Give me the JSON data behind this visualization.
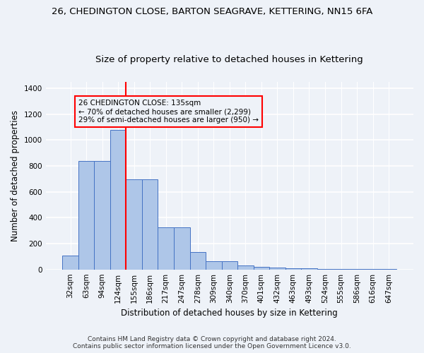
{
  "title": "26, CHEDINGTON CLOSE, BARTON SEAGRAVE, KETTERING, NN15 6FA",
  "subtitle": "Size of property relative to detached houses in Kettering",
  "xlabel": "Distribution of detached houses by size in Kettering",
  "ylabel": "Number of detached properties",
  "categories": [
    "32sqm",
    "63sqm",
    "94sqm",
    "124sqm",
    "155sqm",
    "186sqm",
    "217sqm",
    "247sqm",
    "278sqm",
    "309sqm",
    "340sqm",
    "370sqm",
    "401sqm",
    "432sqm",
    "463sqm",
    "493sqm",
    "524sqm",
    "555sqm",
    "586sqm",
    "616sqm",
    "647sqm"
  ],
  "values": [
    105,
    840,
    840,
    1080,
    695,
    695,
    325,
    325,
    135,
    65,
    65,
    30,
    20,
    15,
    10,
    8,
    5,
    3,
    2,
    1,
    1
  ],
  "bar_color": "#aec6e8",
  "bar_edge_color": "#4472c4",
  "annotation_line1": "26 CHEDINGTON CLOSE: 135sqm",
  "annotation_line2": "← 70% of detached houses are smaller (2,299)",
  "annotation_line3": "29% of semi-detached houses are larger (950) →",
  "annotation_box_color": "#ff0000",
  "vline_color": "#ff0000",
  "vline_x": 3.5,
  "ylim": [
    0,
    1450
  ],
  "yticks": [
    0,
    200,
    400,
    600,
    800,
    1000,
    1200,
    1400
  ],
  "bg_color": "#eef2f8",
  "grid_color": "#ffffff",
  "title_fontsize": 9.5,
  "subtitle_fontsize": 9.5,
  "xlabel_fontsize": 8.5,
  "ylabel_fontsize": 8.5,
  "tick_fontsize": 7.5,
  "footer_line1": "Contains HM Land Registry data © Crown copyright and database right 2024.",
  "footer_line2": "Contains public sector information licensed under the Open Government Licence v3.0.",
  "footer_fontsize": 6.5
}
